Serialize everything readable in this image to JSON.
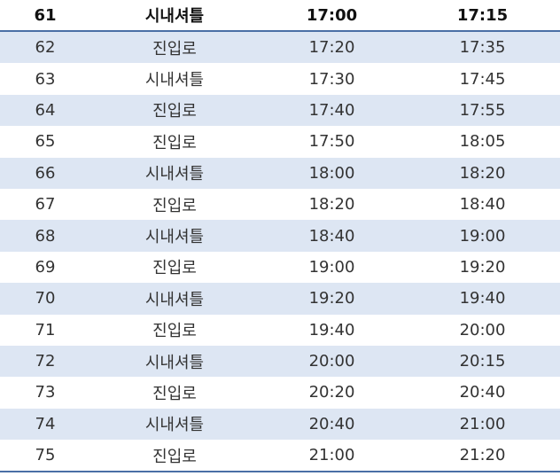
{
  "header": {
    "no": "61",
    "type": "시내셔틀",
    "depart": "17:00",
    "arrive": "17:15"
  },
  "rows": [
    {
      "no": "62",
      "type": "진입로",
      "depart": "17:20",
      "arrive": "17:35"
    },
    {
      "no": "63",
      "type": "시내셔틀",
      "depart": "17:30",
      "arrive": "17:45"
    },
    {
      "no": "64",
      "type": "진입로",
      "depart": "17:40",
      "arrive": "17:55"
    },
    {
      "no": "65",
      "type": "진입로",
      "depart": "17:50",
      "arrive": "18:05"
    },
    {
      "no": "66",
      "type": "시내셔틀",
      "depart": "18:00",
      "arrive": "18:20"
    },
    {
      "no": "67",
      "type": "진입로",
      "depart": "18:20",
      "arrive": "18:40"
    },
    {
      "no": "68",
      "type": "시내셔틀",
      "depart": "18:40",
      "arrive": "19:00"
    },
    {
      "no": "69",
      "type": "진입로",
      "depart": "19:00",
      "arrive": "19:20"
    },
    {
      "no": "70",
      "type": "시내셔틀",
      "depart": "19:20",
      "arrive": "19:40"
    },
    {
      "no": "71",
      "type": "진입로",
      "depart": "19:40",
      "arrive": "20:00"
    },
    {
      "no": "72",
      "type": "시내셔틀",
      "depart": "20:00",
      "arrive": "20:15"
    },
    {
      "no": "73",
      "type": "진입로",
      "depart": "20:20",
      "arrive": "20:40"
    },
    {
      "no": "74",
      "type": "시내셔틀",
      "depart": "20:40",
      "arrive": "21:00"
    },
    {
      "no": "75",
      "type": "진입로",
      "depart": "21:00",
      "arrive": "21:20"
    }
  ],
  "colors": {
    "stripe": "#dde6f3",
    "rule": "#4a6fa5"
  }
}
